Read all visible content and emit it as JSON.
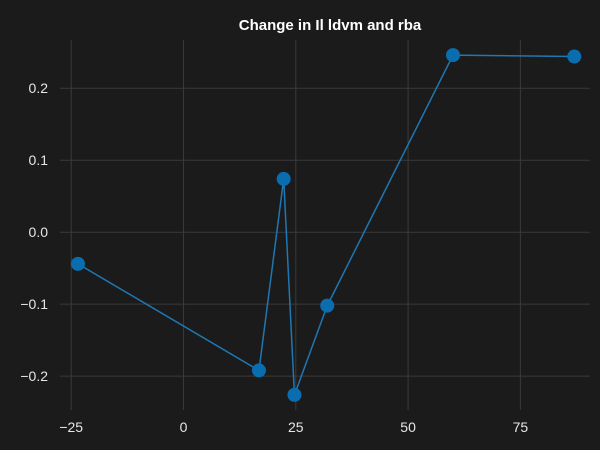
{
  "chart_data": {
    "type": "line",
    "title": "Change in Il ldvm and rba",
    "xlabel": "",
    "ylabel": "",
    "x": [
      -23.5,
      16.8,
      22.3,
      24.7,
      32.0,
      60.0,
      87.0
    ],
    "y": [
      -0.044,
      -0.192,
      0.074,
      -0.226,
      -0.102,
      0.246,
      0.244
    ],
    "xlim": [
      -27.5,
      90.5
    ],
    "ylim": [
      -0.247,
      0.267
    ],
    "xticks": [
      -25,
      0,
      25,
      50,
      75
    ],
    "xtick_labels": [
      "−25",
      "0",
      "25",
      "50",
      "75"
    ],
    "yticks": [
      -0.2,
      -0.1,
      0.0,
      0.1,
      0.2
    ],
    "ytick_labels": [
      "−0.2",
      "−0.1",
      "0.0",
      "0.1",
      "0.2"
    ],
    "grid": true,
    "line_color": "#1f77b4",
    "marker_color": "#0a6db0",
    "background": "#1b1b1b",
    "grid_color": "#3a3a3a",
    "text_color": "#e6e6e6"
  }
}
